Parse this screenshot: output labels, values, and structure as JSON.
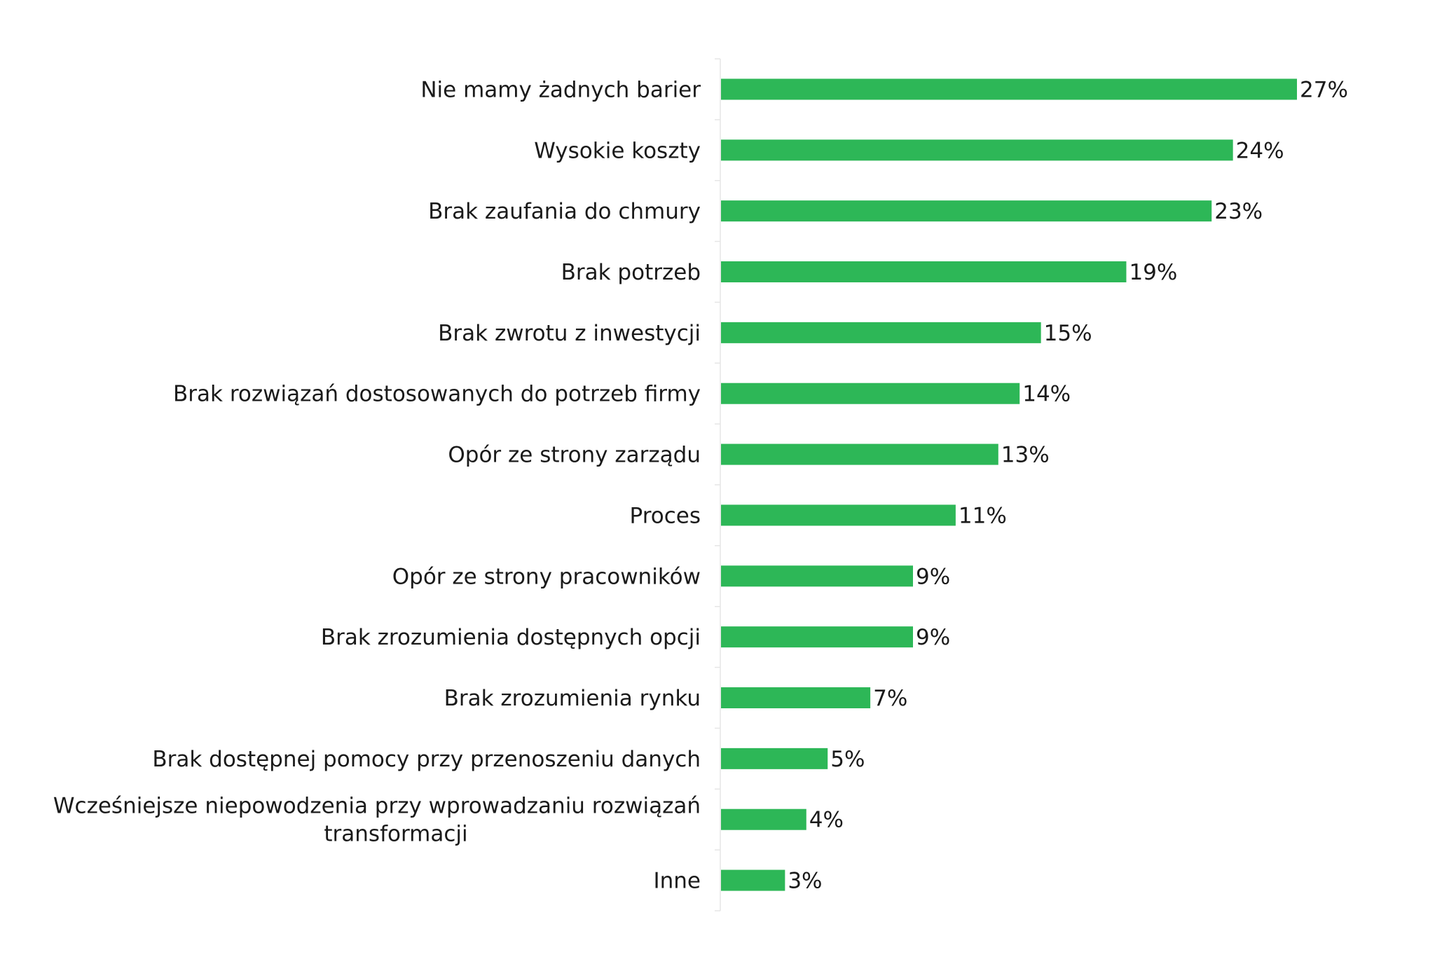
{
  "chart_data": {
    "type": "bar",
    "orientation": "horizontal",
    "categories": [
      "Nie mamy żadnych barier",
      "Wysokie koszty",
      "Brak zaufania do chmury",
      "Brak potrzeb",
      "Brak zwrotu z inwestycji",
      "Brak rozwiązań dostosowanych do potrzeb firmy",
      "Opór ze strony zarządu",
      "Proces",
      "Opór ze strony pracowników",
      "Brak zrozumienia dostępnych opcji",
      "Brak zrozumienia rynku",
      "Brak dostępnej pomocy przy przenoszeniu danych",
      "Wcześniejsze niepowodzenia przy wprowadzaniu rozwiązań transformacji",
      "Inne"
    ],
    "category_lines": [
      [
        "Nie mamy żadnych barier"
      ],
      [
        "Wysokie koszty"
      ],
      [
        "Brak zaufania do chmury"
      ],
      [
        "Brak potrzeb"
      ],
      [
        "Brak zwrotu z inwestycji"
      ],
      [
        "Brak rozwiązań dostosowanych do potrzeb firmy"
      ],
      [
        "Opór ze strony zarządu"
      ],
      [
        "Proces"
      ],
      [
        "Opór ze strony pracowników"
      ],
      [
        "Brak zrozumienia dostępnych opcji"
      ],
      [
        "Brak zrozumienia rynku"
      ],
      [
        "Brak dostępnej pomocy przy przenoszeniu danych"
      ],
      [
        "Wcześniejsze niepowodzenia przy wprowadzaniu rozwiązań",
        "transformacji"
      ],
      [
        "Inne"
      ]
    ],
    "values": [
      27,
      24,
      23,
      19,
      15,
      14,
      13,
      11,
      9,
      9,
      7,
      5,
      4,
      3
    ],
    "value_labels": [
      "27%",
      "24%",
      "23%",
      "19%",
      "15%",
      "14%",
      "13%",
      "11%",
      "9%",
      "9%",
      "7%",
      "5%",
      "4%",
      "3%"
    ],
    "unit": "%",
    "xlim": [
      0,
      30
    ],
    "grid": false,
    "legend": "none",
    "bar_color": "#2db757",
    "axis_color": "#e6e6e6"
  }
}
